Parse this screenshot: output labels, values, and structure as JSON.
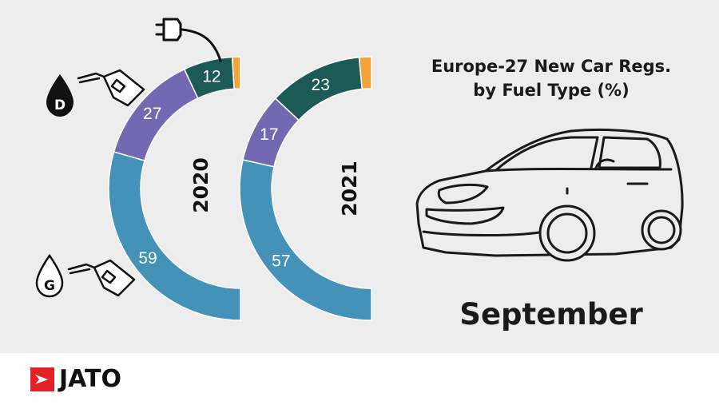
{
  "title": {
    "line1": "Europe-27 New Car Regs.",
    "line2": "by Fuel Type (%)"
  },
  "month": "September",
  "logo": {
    "text": "JATO",
    "brand_color": "#e32227"
  },
  "icons": [
    "plug-icon",
    "diesel-pump-icon",
    "gasoline-pump-icon",
    "car-icon"
  ],
  "icon_letters": {
    "diesel": "D",
    "gasoline": "G"
  },
  "colors": {
    "gasoline": "#4592b9",
    "diesel": "#7369b2",
    "electrified": "#1b5a55",
    "other": "#f2a43a",
    "background": "#eeedee"
  },
  "chart_data": {
    "type": "pie",
    "style": "half-donut",
    "charts": [
      {
        "year": "2020",
        "slices": [
          {
            "key": "gasoline",
            "value": 59,
            "label": "59"
          },
          {
            "key": "diesel",
            "value": 27,
            "label": "27"
          },
          {
            "key": "electrified",
            "value": 12,
            "label": "12"
          },
          {
            "key": "other",
            "value": 2,
            "label": ""
          }
        ]
      },
      {
        "year": "2021",
        "slices": [
          {
            "key": "gasoline",
            "value": 57,
            "label": "57"
          },
          {
            "key": "diesel",
            "value": 17,
            "label": "17"
          },
          {
            "key": "electrified",
            "value": 23,
            "label": "23"
          },
          {
            "key": "other",
            "value": 3,
            "label": ""
          }
        ]
      }
    ]
  }
}
